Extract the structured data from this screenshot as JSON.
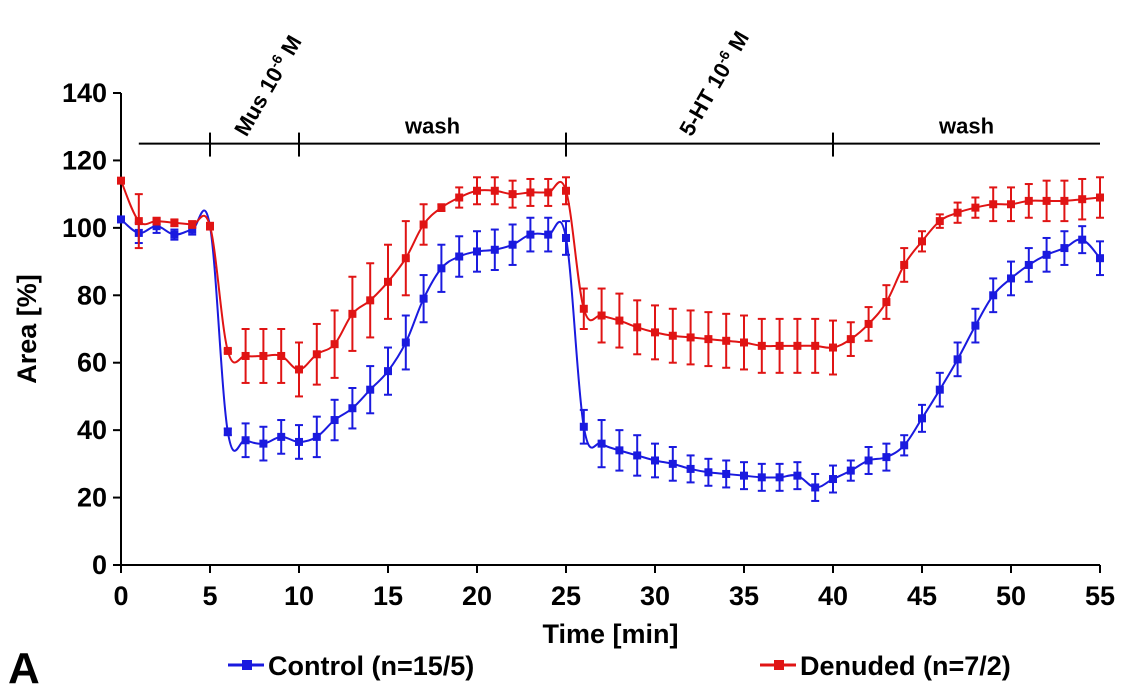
{
  "panel_label": "A",
  "chart_data": {
    "type": "line",
    "xlabel": "Time [min]",
    "ylabel": "Area [%]",
    "xlim": [
      0,
      55
    ],
    "ylim": [
      0,
      140
    ],
    "xticks": [
      0,
      5,
      10,
      15,
      20,
      25,
      30,
      35,
      40,
      45,
      50,
      55
    ],
    "yticks": [
      0,
      20,
      40,
      60,
      80,
      100,
      120,
      140
    ],
    "grid": false,
    "legend_position": "bottom",
    "phase_bar": {
      "y": 125,
      "start": 1,
      "end": 55,
      "dividers": [
        5,
        10,
        25,
        40
      ],
      "labels": [
        {
          "text": "Mus 10",
          "sup": "-6",
          "suffix": " M",
          "rotated": true,
          "at": 7.5
        },
        {
          "text": "wash",
          "sup": "",
          "suffix": "",
          "rotated": false,
          "at": 17.5
        },
        {
          "text": "5-HT 10",
          "sup": "-6",
          "suffix": " M",
          "rotated": true,
          "at": 32.5
        },
        {
          "text": "wash",
          "sup": "",
          "suffix": "",
          "rotated": false,
          "at": 47.5
        }
      ]
    },
    "series": [
      {
        "name": "Control (n=15/5)",
        "color": "#1a1adf",
        "x": [
          0,
          1,
          2,
          3,
          4,
          5,
          6,
          7,
          8,
          9,
          10,
          11,
          12,
          13,
          14,
          15,
          16,
          17,
          18,
          19,
          20,
          21,
          22,
          23,
          24,
          25,
          26,
          27,
          28,
          29,
          30,
          31,
          32,
          33,
          34,
          35,
          36,
          37,
          38,
          39,
          40,
          41,
          42,
          43,
          44,
          45,
          46,
          47,
          48,
          49,
          50,
          51,
          52,
          53,
          54,
          55
        ],
        "values": [
          102.5,
          98.5,
          100.5,
          98,
          99.5,
          100.5,
          39.5,
          37,
          36,
          38,
          36.5,
          38,
          43,
          46.5,
          52,
          57.5,
          66,
          79,
          88,
          91.5,
          93,
          93.5,
          95,
          98,
          98,
          97,
          41,
          36,
          34,
          32.5,
          31,
          30,
          28.5,
          27.5,
          27,
          26.5,
          26,
          26,
          26.5,
          23,
          25.5,
          28,
          31,
          32,
          35.5,
          43.5,
          52,
          61,
          71,
          80,
          85,
          89,
          92,
          94,
          96.5,
          91
        ],
        "errors": [
          0,
          3,
          2,
          1.5,
          1.5,
          0.5,
          1,
          5,
          5,
          5,
          5,
          6,
          6,
          6,
          7,
          7,
          8,
          7,
          7,
          6,
          6,
          6,
          6,
          5,
          5,
          5,
          5,
          7,
          6,
          6,
          5,
          5,
          4,
          4,
          4,
          4,
          4,
          4,
          4,
          4,
          4,
          3,
          4,
          4,
          3,
          4,
          5,
          5,
          5,
          5,
          5,
          5,
          5,
          5,
          4,
          5
        ]
      },
      {
        "name": "Denuded (n=7/2)",
        "color": "#e01414",
        "x": [
          0,
          1,
          2,
          3,
          4,
          5,
          6,
          7,
          8,
          9,
          10,
          11,
          12,
          13,
          14,
          15,
          16,
          17,
          18,
          19,
          20,
          21,
          22,
          23,
          24,
          25,
          26,
          27,
          28,
          29,
          30,
          31,
          32,
          33,
          34,
          35,
          36,
          37,
          38,
          39,
          40,
          41,
          42,
          43,
          44,
          45,
          46,
          47,
          48,
          49,
          50,
          51,
          52,
          53,
          54,
          55
        ],
        "values": [
          114,
          102,
          102,
          101.5,
          101,
          100.5,
          63.5,
          62,
          62,
          62,
          58,
          62.5,
          65.5,
          74.5,
          78.5,
          84,
          91,
          101,
          106,
          109,
          111,
          111,
          110,
          110.5,
          110.5,
          111,
          76,
          74,
          72.5,
          70.5,
          69,
          68,
          67.5,
          67,
          66.5,
          66,
          65,
          65,
          65,
          65,
          64.5,
          67,
          71.5,
          78,
          89,
          96,
          102,
          104.5,
          106,
          107,
          107,
          108,
          108,
          108,
          108.5,
          109
        ],
        "errors": [
          0,
          8,
          1,
          1,
          1,
          1,
          0.5,
          8,
          8,
          8,
          8,
          9,
          10,
          11,
          11,
          11,
          11,
          6,
          1,
          3,
          4,
          4,
          4,
          4,
          4,
          4,
          6,
          8,
          8,
          8,
          8,
          8,
          8,
          8,
          8,
          8,
          8,
          8,
          8,
          8,
          8,
          5,
          5,
          5,
          5,
          3,
          2,
          3,
          3,
          5,
          5,
          5,
          6,
          6,
          6,
          6
        ]
      }
    ]
  }
}
